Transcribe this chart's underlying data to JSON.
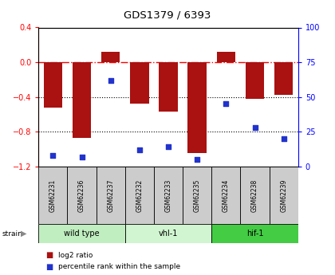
{
  "title": "GDS1379 / 6393",
  "samples": [
    "GSM62231",
    "GSM62236",
    "GSM62237",
    "GSM62232",
    "GSM62233",
    "GSM62235",
    "GSM62234",
    "GSM62238",
    "GSM62239"
  ],
  "log2_ratios": [
    -0.52,
    -0.87,
    0.12,
    -0.48,
    -0.57,
    -1.05,
    0.12,
    -0.42,
    -0.38
  ],
  "percentile_ranks": [
    8,
    7,
    62,
    12,
    14,
    5,
    45,
    28,
    20
  ],
  "groups": [
    {
      "label": "wild type",
      "start": 0,
      "end": 3,
      "color": "#c0eec0"
    },
    {
      "label": "vhl-1",
      "start": 3,
      "end": 6,
      "color": "#d0f5d0"
    },
    {
      "label": "hif-1",
      "start": 6,
      "end": 9,
      "color": "#44cc44"
    }
  ],
  "bar_color": "#aa1111",
  "dot_color": "#2233cc",
  "ylim_left": [
    -1.2,
    0.4
  ],
  "ylim_right": [
    0,
    100
  ],
  "yticks_left": [
    -1.2,
    -0.8,
    -0.4,
    0.0,
    0.4
  ],
  "yticks_right": [
    0,
    25,
    50,
    75,
    100
  ],
  "hline_y": 0.0,
  "dotted_lines": [
    -0.4,
    -0.8
  ],
  "label_bg": "#cccccc",
  "legend_items": [
    {
      "label": "log2 ratio",
      "color": "#aa1111"
    },
    {
      "label": "percentile rank within the sample",
      "color": "#2233cc"
    }
  ]
}
